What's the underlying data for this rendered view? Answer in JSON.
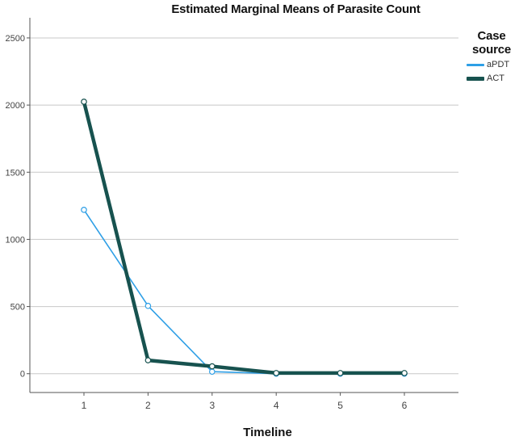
{
  "chart_data": {
    "type": "line",
    "title": "Estimated Marginal Means of Parasite Count",
    "xlabel": "Timeline",
    "ylabel": "",
    "categories": [
      "1",
      "2",
      "3",
      "4",
      "5",
      "6"
    ],
    "yticks": [
      "0",
      "500",
      "1000",
      "1500",
      "2000",
      "2500"
    ],
    "ylim": [
      -140,
      2650
    ],
    "grid": "horizontal",
    "legend": {
      "title_line1": "Case",
      "title_line2": "source",
      "placement": "right"
    },
    "series": [
      {
        "name": "aPDT",
        "color": "#2e9fe6",
        "values": [
          1220,
          505,
          15,
          0,
          0,
          0
        ]
      },
      {
        "name": "ACT",
        "color": "#17524f",
        "values": [
          2025,
          100,
          55,
          5,
          5,
          5
        ]
      }
    ]
  }
}
